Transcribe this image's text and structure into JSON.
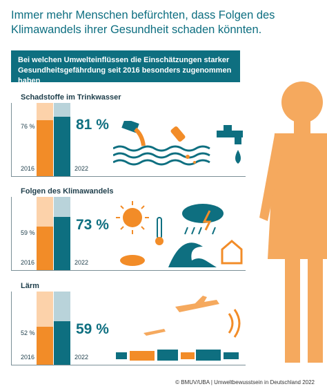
{
  "headline": "Immer mehr Menschen befürchten, dass Folgen des Klimawandels ihrer Gesundheit schaden könnten.",
  "banner": "Bei welchen Umwelteinflüssen die Einschätzungen starker Gesundheitsgefährdung seit 2016 besonders zugenommen haben",
  "colors": {
    "orange": "#f28c28",
    "orange_light": "#fcd2aa",
    "teal": "#0e6f80",
    "teal_light": "#b9d3da"
  },
  "chart_data": [
    {
      "type": "bar",
      "title": "Schadstoffe im Trinkwasser",
      "categories": [
        "2016",
        "2022"
      ],
      "values": [
        76,
        81
      ],
      "labels": [
        "76 %",
        "81 %"
      ]
    },
    {
      "type": "bar",
      "title": "Folgen des Klimawandels",
      "categories": [
        "2016",
        "2022"
      ],
      "values": [
        59,
        73
      ],
      "labels": [
        "59 %",
        "73 %"
      ]
    },
    {
      "type": "bar",
      "title": "Lärm",
      "categories": [
        "2016",
        "2022"
      ],
      "values": [
        52,
        59
      ],
      "labels": [
        "52 %",
        "59 %"
      ]
    }
  ],
  "footer": "© BMUV/UBA   |   Umweltbewusstsein in Deutschland 2022"
}
